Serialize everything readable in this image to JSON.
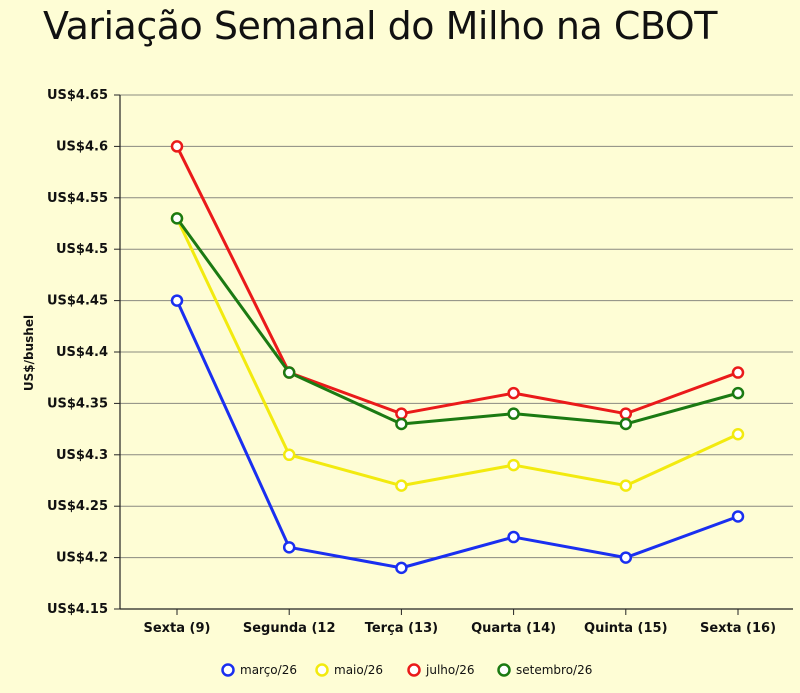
{
  "chart_data": {
    "type": "line",
    "title": "Variação Semanal do Milho na CBOT",
    "ylabel": "US$/bushel",
    "xlabel": "",
    "categories": [
      "Sexta (9)",
      "Segunda (12",
      "Terça (13)",
      "Quarta (14)",
      "Quinta (15)",
      "Sexta (16)"
    ],
    "ylim": [
      4.15,
      4.65
    ],
    "yticks": [
      4.15,
      4.2,
      4.25,
      4.3,
      4.35,
      4.4,
      4.45,
      4.5,
      4.55,
      4.6,
      4.65
    ],
    "ytick_labels": [
      "US$4.15",
      "US$4.2",
      "US$4.25",
      "US$4.3",
      "US$4.35",
      "US$4.4",
      "US$4.45",
      "US$4.5",
      "US$4.55",
      "US$4.6",
      "US$4.65"
    ],
    "grid": true,
    "legend_position": "bottom",
    "series": [
      {
        "name": "março/26",
        "color": "#1a2ff0",
        "values": [
          4.45,
          4.21,
          4.19,
          4.22,
          4.2,
          4.24
        ]
      },
      {
        "name": "maio/26",
        "color": "#f2ea0f",
        "values": [
          4.53,
          4.3,
          4.27,
          4.29,
          4.27,
          4.32
        ]
      },
      {
        "name": "julho/26",
        "color": "#ea1a1a",
        "values": [
          4.6,
          4.38,
          4.34,
          4.36,
          4.34,
          4.38
        ]
      },
      {
        "name": "setembro/26",
        "color": "#1b7a12",
        "values": [
          4.53,
          4.38,
          4.33,
          4.34,
          4.33,
          4.36
        ]
      }
    ]
  }
}
